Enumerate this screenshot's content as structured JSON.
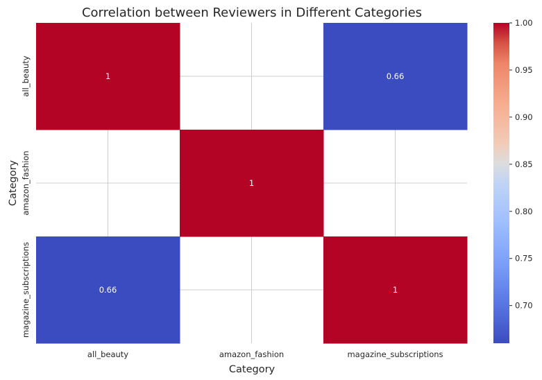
{
  "chart_data": {
    "type": "heatmap",
    "title": "Correlation between Reviewers in Different Categories",
    "xlabel": "Category",
    "ylabel": "Category",
    "x_categories": [
      "all_beauty",
      "amazon_fashion",
      "magazine_subscriptions"
    ],
    "y_categories": [
      "all_beauty",
      "amazon_fashion",
      "magazine_subscriptions"
    ],
    "values": [
      [
        1,
        null,
        0.66
      ],
      [
        null,
        1,
        null
      ],
      [
        0.66,
        null,
        1
      ]
    ],
    "cell_labels": [
      [
        "1",
        "",
        "0.66"
      ],
      [
        "",
        "1",
        ""
      ],
      [
        "0.66",
        "",
        "1"
      ]
    ],
    "colormap": "coolwarm",
    "colors": {
      "low": "#3b4cc0",
      "high": "#b40426",
      "label_on_dark": "#ffffff"
    },
    "vmin": 0.66,
    "vmax": 1.0,
    "grid": true,
    "colorbar": {
      "ticks": [
        0.7,
        0.75,
        0.8,
        0.85,
        0.9,
        0.95,
        1.0
      ],
      "tick_labels": [
        "0.70",
        "0.75",
        "0.80",
        "0.85",
        "0.90",
        "0.95",
        "1.00"
      ]
    }
  }
}
